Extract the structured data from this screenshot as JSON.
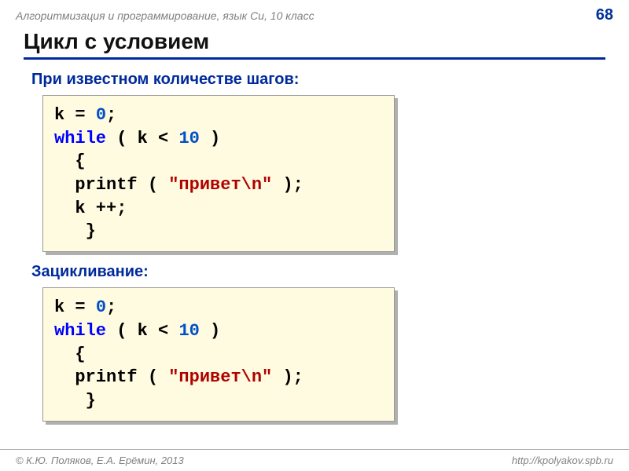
{
  "header": {
    "breadcrumb": "Алгоритмизация и программирование, язык Си, 10 класс",
    "page_number": "68"
  },
  "title": "Цикл с условием",
  "section1": {
    "heading": "При известном количестве шагов:",
    "code": [
      {
        "indent": "",
        "tokens": [
          {
            "t": "k = ",
            "c": "default"
          },
          {
            "t": "0",
            "c": "num"
          },
          {
            "t": ";",
            "c": "default"
          }
        ]
      },
      {
        "indent": "",
        "tokens": [
          {
            "t": "while",
            "c": "kw"
          },
          {
            "t": " ( k < ",
            "c": "default"
          },
          {
            "t": "10",
            "c": "num"
          },
          {
            "t": " )",
            "c": "default"
          }
        ]
      },
      {
        "indent": "  ",
        "tokens": [
          {
            "t": "{",
            "c": "default"
          }
        ]
      },
      {
        "indent": "  ",
        "tokens": [
          {
            "t": "printf ( ",
            "c": "default"
          },
          {
            "t": "\"привет\\n\"",
            "c": "str"
          },
          {
            "t": " );",
            "c": "default"
          }
        ]
      },
      {
        "indent": "  ",
        "tokens": [
          {
            "t": "k ++;",
            "c": "default"
          }
        ]
      },
      {
        "indent": "   ",
        "tokens": [
          {
            "t": "}",
            "c": "default"
          }
        ]
      }
    ]
  },
  "section2": {
    "heading": "Зацикливание:",
    "code": [
      {
        "indent": "",
        "tokens": [
          {
            "t": "k = ",
            "c": "default"
          },
          {
            "t": "0",
            "c": "num"
          },
          {
            "t": ";",
            "c": "default"
          }
        ]
      },
      {
        "indent": "",
        "tokens": [
          {
            "t": "while",
            "c": "kw"
          },
          {
            "t": " ( k < ",
            "c": "default"
          },
          {
            "t": "10",
            "c": "num"
          },
          {
            "t": " )",
            "c": "default"
          }
        ]
      },
      {
        "indent": "  ",
        "tokens": [
          {
            "t": "{",
            "c": "default"
          }
        ]
      },
      {
        "indent": "  ",
        "tokens": [
          {
            "t": "printf ( ",
            "c": "default"
          },
          {
            "t": "\"привет\\n\"",
            "c": "str"
          },
          {
            "t": " );",
            "c": "default"
          }
        ]
      },
      {
        "indent": "   ",
        "tokens": [
          {
            "t": "}",
            "c": "default"
          }
        ]
      }
    ]
  },
  "footer": {
    "copyright": "© К.Ю. Поляков, Е.А. Ерёмин, 2013",
    "url": "http://kpolyakov.spb.ru"
  },
  "colors": {
    "page_bg": "#ffffff",
    "code_bg": "#fffbe0",
    "code_shadow": "#b0b0b0",
    "title_underline": "#002a9c",
    "subtitle_color": "#002a9c",
    "pagenum_color": "#003399",
    "tok_default": "#000000",
    "tok_num": "#0050c8",
    "tok_kw": "#0000ff",
    "tok_str": "#b00000",
    "muted": "#808080"
  }
}
